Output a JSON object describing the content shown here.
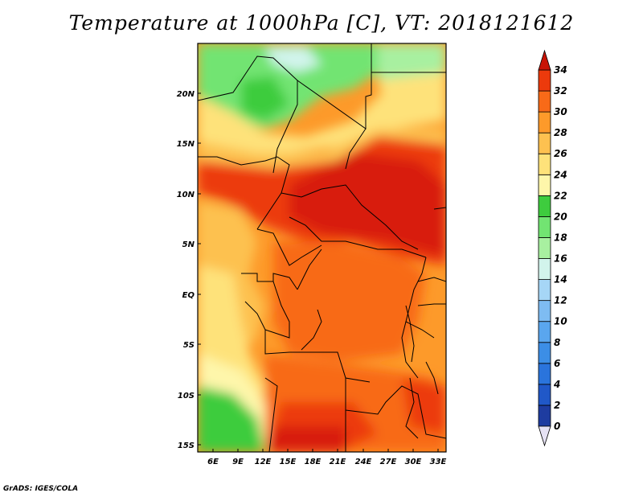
{
  "title": "Temperature at 1000hPa [C], VT: 2018121612",
  "credit": "GrADS: IGES/COLA",
  "map": {
    "lon_ticks": [
      "6E",
      "9E",
      "12E",
      "15E",
      "18E",
      "21E",
      "24E",
      "27E",
      "30E",
      "33E"
    ],
    "lat_ticks": [
      "20N",
      "15N",
      "10N",
      "5N",
      "EQ",
      "5S",
      "10S",
      "15S"
    ]
  },
  "colorbar": {
    "labels": [
      "0",
      "2",
      "4",
      "6",
      "8",
      "10",
      "12",
      "14",
      "16",
      "18",
      "20",
      "22",
      "24",
      "26",
      "28",
      "30",
      "32",
      "34"
    ],
    "colors": [
      "#1a1a78",
      "#1e3ca0",
      "#2058c8",
      "#2a74dc",
      "#3c8ee6",
      "#5aa6ee",
      "#7ebcf2",
      "#a6d6f6",
      "#d2f4ec",
      "#a8f0a0",
      "#72e472",
      "#3ecc3e",
      "#fef6aa",
      "#fee27a",
      "#fdc150",
      "#fd9a2a",
      "#f86a18",
      "#ec3a0c",
      "#d81a08"
    ],
    "under_color": "#e6e2f4",
    "over_color": "#c81406"
  }
}
